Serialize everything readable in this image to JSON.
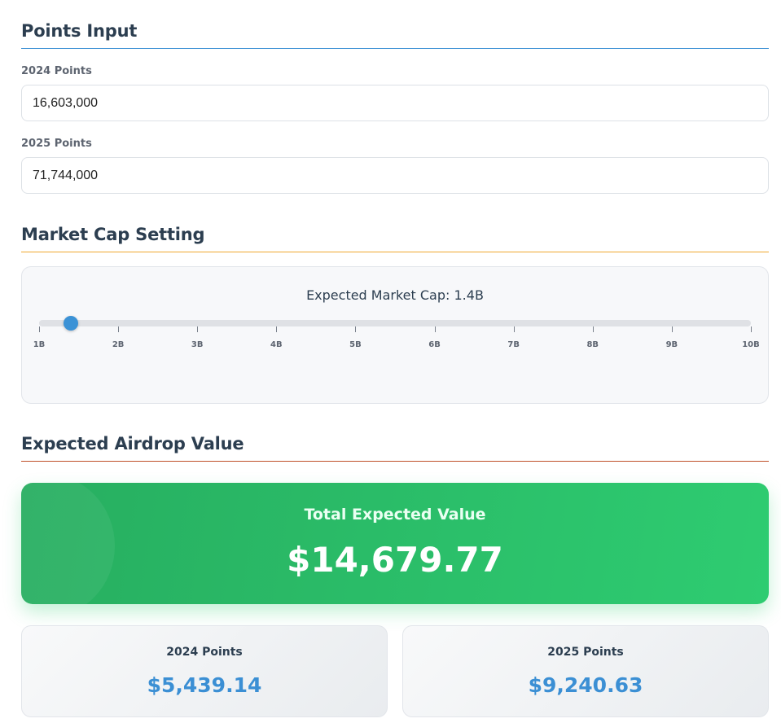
{
  "points_input": {
    "title": "Points Input",
    "rule_color": "#3b8fd4",
    "fields": [
      {
        "label": "2024 Points",
        "value": "16,603,000"
      },
      {
        "label": "2025 Points",
        "value": "71,744,000"
      }
    ]
  },
  "market_cap": {
    "title": "Market Cap Setting",
    "rule_color": "#f0a830",
    "caption": "Expected Market Cap: 1.4B",
    "slider": {
      "min": 1,
      "max": 10,
      "value": 1.4,
      "tick_labels": [
        "1B",
        "2B",
        "3B",
        "4B",
        "5B",
        "6B",
        "7B",
        "8B",
        "9B",
        "10B"
      ]
    }
  },
  "airdrop": {
    "title": "Expected Airdrop Value",
    "rule_color": "#c0502a",
    "total": {
      "label": "Total Expected Value",
      "value": "$14,679.77"
    },
    "breakdown": [
      {
        "label": "2024 Points",
        "value": "$5,439.14"
      },
      {
        "label": "2025 Points",
        "value": "$9,240.63"
      }
    ]
  }
}
